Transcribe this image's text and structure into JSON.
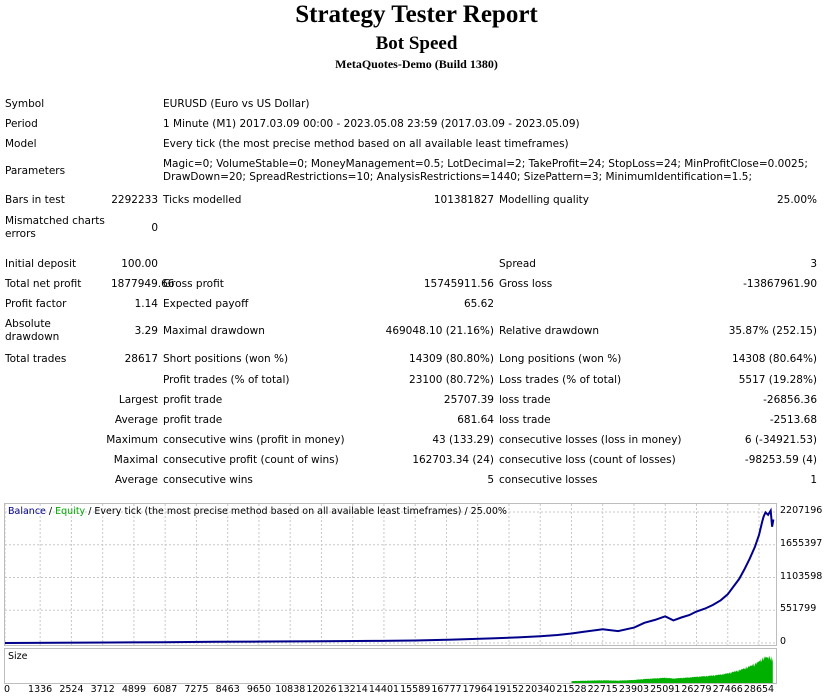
{
  "header": {
    "title": "Strategy Tester Report",
    "subtitle": "Bot Speed",
    "server": "MetaQuotes-Demo (Build 1380)"
  },
  "info": {
    "symbol_label": "Symbol",
    "symbol": "EURUSD (Euro vs US Dollar)",
    "period_label": "Period",
    "period": "1 Minute (M1) 2017.03.09 00:00 - 2023.05.08 23:59 (2017.03.09 - 2023.05.09)",
    "model_label": "Model",
    "model": "Every tick (the most precise method based on all available least timeframes)",
    "parameters_label": "Parameters",
    "parameters_line1": "Magic=0; VolumeStable=0; MoneyManagement=0.5; LotDecimal=2; TakeProfit=24; StopLoss=24; MinProfitClose=0.0025;",
    "parameters_line2": "DrawDown=20; SpreadRestrictions=10; AnalysisRestrictions=1440; SizePattern=3; MinimumIdentification=1.5;",
    "bars_label": "Bars in test",
    "bars": "2292233",
    "ticks_label": "Ticks modelled",
    "ticks": "101381827",
    "quality_label": "Modelling quality",
    "quality": "25.00%",
    "mismatch_label": "Mismatched charts errors",
    "mismatch": "0"
  },
  "results": {
    "deposit_label": "Initial deposit",
    "deposit": "100.00",
    "spread_label": "Spread",
    "spread": "3",
    "net_label": "Total net profit",
    "net": "1877949.66",
    "gross_profit_label": "Gross profit",
    "gross_profit": "15745911.56",
    "gross_loss_label": "Gross loss",
    "gross_loss": "-13867961.90",
    "pf_label": "Profit factor",
    "pf": "1.14",
    "payoff_label": "Expected payoff",
    "payoff": "65.62",
    "abs_dd_label": "Absolute drawdown",
    "abs_dd": "3.29",
    "max_dd_label": "Maximal drawdown",
    "max_dd": "469048.10 (21.16%)",
    "rel_dd_label": "Relative drawdown",
    "rel_dd": "35.87% (252.15)",
    "trades_label": "Total trades",
    "trades": "28617",
    "short_label": "Short positions (won %)",
    "short": "14309 (80.80%)",
    "long_label": "Long positions (won %)",
    "long": "14308 (80.64%)",
    "ptrades_label": "Profit trades (% of total)",
    "ptrades": "23100 (80.72%)",
    "ltrades_label": "Loss trades (% of total)",
    "ltrades": "5517 (19.28%)",
    "largest": "Largest",
    "lp_label": "profit trade",
    "lp": "25707.39",
    "ll_label": "loss trade",
    "ll": "-26856.36",
    "average": "Average",
    "ap_label": "profit trade",
    "ap": "681.64",
    "al_label": "loss trade",
    "al": "-2513.68",
    "maximum": "Maximum",
    "mcw_label": "consecutive wins (profit in money)",
    "mcw": "43 (133.29)",
    "mcl_label": "consecutive losses (loss in money)",
    "mcl": "6 (-34921.53)",
    "maximal": "Maximal",
    "mcp_label": "consecutive profit (count of wins)",
    "mcp": "162703.34 (24)",
    "mclc_label": "consecutive loss (count of losses)",
    "mclc": "-98253.59 (4)",
    "average2": "Average",
    "acw_label": "consecutive wins",
    "acw": "5",
    "acl_label": "consecutive losses",
    "acl": "1"
  },
  "chart_data": {
    "type": "line",
    "legend_balance": "Balance",
    "legend_sep": " / ",
    "legend_equity": "Equity",
    "legend_rest": " / Every tick (the most precise method based on all available least timeframes) / 25.00%",
    "colors": {
      "balance": "#00008b",
      "equity": "#00aa00",
      "grid": "#c8c8c8",
      "size": "#00b000"
    },
    "yticks": [
      "2207196",
      "1655397",
      "1103598",
      "551799",
      "0"
    ],
    "ylim": [
      0,
      2207196
    ],
    "xticks": [
      "0",
      "1336",
      "2524",
      "3712",
      "4899",
      "6087",
      "7275",
      "8463",
      "9650",
      "10838",
      "12026",
      "13214",
      "14401",
      "15589",
      "16777",
      "17964",
      "19152",
      "20340",
      "21528",
      "22715",
      "23903",
      "25091",
      "26279",
      "27466",
      "28654"
    ],
    "xlim": [
      0,
      29300
    ],
    "series": [
      {
        "name": "Balance",
        "x": [
          0,
          2000,
          4000,
          6000,
          8000,
          10000,
          12000,
          14000,
          15589,
          17000,
          18500,
          19500,
          20340,
          21000,
          21528,
          22000,
          22715,
          23300,
          23903,
          24300,
          24700,
          25091,
          25400,
          25700,
          26000,
          26279,
          26600,
          26900,
          27200,
          27466,
          27700,
          27900,
          28100,
          28300,
          28500,
          28654,
          28780,
          28830,
          28900,
          29000,
          29100,
          29150,
          29200
        ],
        "y": [
          100,
          3000,
          8000,
          14000,
          20000,
          25000,
          30000,
          35000,
          42000,
          58000,
          78000,
          95000,
          115000,
          135000,
          160000,
          190000,
          230000,
          200000,
          260000,
          340000,
          390000,
          450000,
          380000,
          430000,
          470000,
          530000,
          580000,
          640000,
          720000,
          820000,
          960000,
          1080000,
          1240000,
          1420000,
          1620000,
          1820000,
          2050000,
          2130000,
          2200000,
          2160000,
          2230000,
          1960000,
          2080000
        ]
      }
    ],
    "size_label": "Size"
  }
}
